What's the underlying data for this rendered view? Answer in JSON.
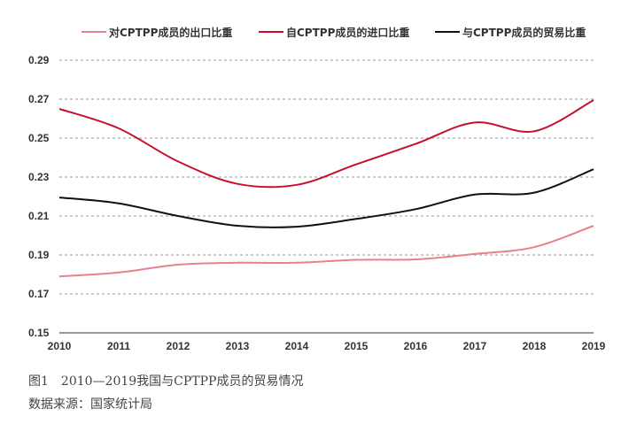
{
  "chart_data": {
    "type": "line",
    "x": [
      2010,
      2011,
      2012,
      2013,
      2014,
      2015,
      2016,
      2017,
      2018,
      2019
    ],
    "series": [
      {
        "name": "对CPTPP成员的出口比重",
        "color": "#e8808e",
        "values": [
          0.179,
          0.181,
          0.185,
          0.186,
          0.186,
          0.1875,
          0.1877,
          0.1905,
          0.194,
          0.205
        ]
      },
      {
        "name": "自CPTPP成员的进口比重",
        "color": "#c8102e",
        "values": [
          0.265,
          0.255,
          0.238,
          0.2265,
          0.226,
          0.2365,
          0.247,
          0.258,
          0.2535,
          0.2695
        ]
      },
      {
        "name": "与CPTPP成员的贸易比重",
        "color": "#111111",
        "values": [
          0.2195,
          0.2165,
          0.21,
          0.205,
          0.2045,
          0.2085,
          0.2135,
          0.221,
          0.222,
          0.234
        ]
      }
    ],
    "ylim": [
      0.15,
      0.29
    ],
    "yticks": [
      0.15,
      0.17,
      0.19,
      0.21,
      0.23,
      0.25,
      0.27,
      0.29
    ],
    "ytick_labels": [
      "0.15",
      "0.17",
      "0.19",
      "0.21",
      "0.23",
      "0.25",
      "0.27",
      "0.29"
    ],
    "xtick_labels": [
      "2010",
      "2011",
      "2012",
      "2013",
      "2014",
      "2015",
      "2016",
      "2017",
      "2018",
      "2019"
    ],
    "grid": "horizontal-dashed",
    "legend_position": "top",
    "title": "",
    "xlabel": "",
    "ylabel": ""
  },
  "caption": {
    "title": "图1　2010—2019我国与CPTPP成员的贸易情况",
    "source": "数据来源：国家统计局"
  }
}
